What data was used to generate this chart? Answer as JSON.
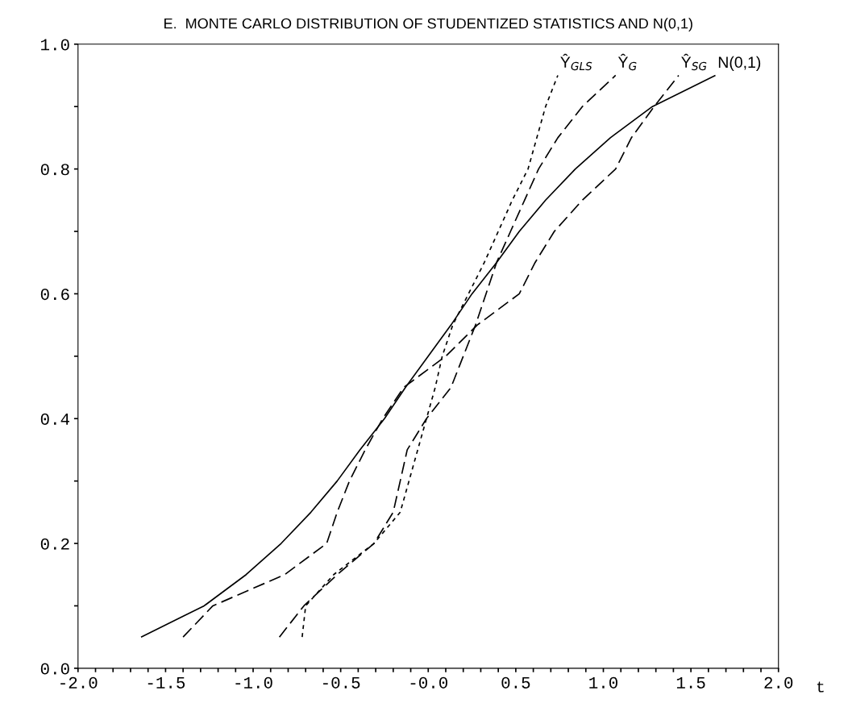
{
  "chart_data": {
    "type": "line",
    "title": "E.  MONTE CARLO DISTRIBUTION OF STUDENTIZED STATISTICS AND N(0,1)",
    "xlabel": "t",
    "xlim": [
      -2.0,
      2.0
    ],
    "ylim": [
      0.0,
      1.0
    ],
    "xticks": [
      {
        "value": -2.0,
        "label": "-2.0"
      },
      {
        "value": -1.9,
        "label": null
      },
      {
        "value": -1.8,
        "label": null
      },
      {
        "value": -1.7,
        "label": null
      },
      {
        "value": -1.6,
        "label": null
      },
      {
        "value": -1.5,
        "label": "-1.5"
      },
      {
        "value": -1.4,
        "label": null
      },
      {
        "value": -1.3,
        "label": null
      },
      {
        "value": -1.2,
        "label": null
      },
      {
        "value": -1.1,
        "label": null
      },
      {
        "value": -1.0,
        "label": "-1.0"
      },
      {
        "value": -0.9,
        "label": null
      },
      {
        "value": -0.8,
        "label": null
      },
      {
        "value": -0.7,
        "label": null
      },
      {
        "value": -0.6,
        "label": null
      },
      {
        "value": -0.5,
        "label": "-0.5"
      },
      {
        "value": -0.4,
        "label": null
      },
      {
        "value": -0.3,
        "label": null
      },
      {
        "value": -0.2,
        "label": null
      },
      {
        "value": -0.1,
        "label": null
      },
      {
        "value": 0.0,
        "label": "-0.0"
      },
      {
        "value": 0.1,
        "label": null
      },
      {
        "value": 0.2,
        "label": null
      },
      {
        "value": 0.3,
        "label": null
      },
      {
        "value": 0.4,
        "label": null
      },
      {
        "value": 0.5,
        "label": "0.5"
      },
      {
        "value": 0.6,
        "label": null
      },
      {
        "value": 0.7,
        "label": null
      },
      {
        "value": 0.8,
        "label": null
      },
      {
        "value": 0.9,
        "label": null
      },
      {
        "value": 1.0,
        "label": "1.0"
      },
      {
        "value": 1.1,
        "label": null
      },
      {
        "value": 1.2,
        "label": null
      },
      {
        "value": 1.3,
        "label": null
      },
      {
        "value": 1.4,
        "label": null
      },
      {
        "value": 1.5,
        "label": "1.5"
      },
      {
        "value": 1.6,
        "label": null
      },
      {
        "value": 1.7,
        "label": null
      },
      {
        "value": 1.8,
        "label": null
      },
      {
        "value": 1.9,
        "label": null
      },
      {
        "value": 2.0,
        "label": "2.0"
      }
    ],
    "yticks": [
      {
        "value": 0.0,
        "label": "0.0"
      },
      {
        "value": 0.1,
        "label": null
      },
      {
        "value": 0.2,
        "label": "0.2"
      },
      {
        "value": 0.3,
        "label": null
      },
      {
        "value": 0.4,
        "label": "0.4"
      },
      {
        "value": 0.5,
        "label": null
      },
      {
        "value": 0.6,
        "label": "0.6"
      },
      {
        "value": 0.7,
        "label": null
      },
      {
        "value": 0.8,
        "label": "0.8"
      },
      {
        "value": 0.9,
        "label": null
      },
      {
        "value": 1.0,
        "label": "1.0"
      }
    ],
    "grid": false,
    "legend": false,
    "series": [
      {
        "name": "Ŷ$_{GLS}$",
        "color": "#000000",
        "line_style": "dotted",
        "x": [
          -0.72,
          -0.7,
          -0.54,
          -0.31,
          -0.16,
          -0.11,
          -0.06,
          -0.01,
          0.04,
          0.08,
          0.14,
          0.23,
          0.32,
          0.4,
          0.48,
          0.57,
          0.62,
          0.67,
          0.74
        ],
        "values": [
          0.05,
          0.1,
          0.15,
          0.2,
          0.25,
          0.3,
          0.35,
          0.4,
          0.45,
          0.5,
          0.55,
          0.6,
          0.65,
          0.7,
          0.75,
          0.8,
          0.85,
          0.9,
          0.95
        ]
      },
      {
        "name": "Ŷ$_{G}$",
        "color": "#000000",
        "line_style": "dashed",
        "x": [
          -0.85,
          -0.71,
          -0.52,
          -0.31,
          -0.2,
          -0.16,
          -0.12,
          -0.01,
          0.13,
          0.2,
          0.27,
          0.33,
          0.39,
          0.47,
          0.55,
          0.63,
          0.74,
          0.88,
          1.07
        ],
        "values": [
          0.05,
          0.1,
          0.15,
          0.2,
          0.25,
          0.3,
          0.35,
          0.4,
          0.45,
          0.5,
          0.55,
          0.6,
          0.65,
          0.7,
          0.75,
          0.8,
          0.85,
          0.9,
          0.95
        ]
      },
      {
        "name": "Ŷ$_{SG}$",
        "color": "#000000",
        "line_style": "dashed",
        "x": [
          -1.4,
          -1.23,
          -0.82,
          -0.58,
          -0.52,
          -0.45,
          -0.36,
          -0.26,
          -0.14,
          0.1,
          0.28,
          0.52,
          0.61,
          0.72,
          0.88,
          1.07,
          1.16,
          1.29,
          1.43
        ],
        "values": [
          0.05,
          0.1,
          0.15,
          0.2,
          0.25,
          0.3,
          0.35,
          0.4,
          0.45,
          0.5,
          0.55,
          0.6,
          0.65,
          0.7,
          0.75,
          0.8,
          0.85,
          0.9,
          0.95
        ]
      },
      {
        "name": "N(0,1)",
        "color": "#000000",
        "line_style": "solid",
        "x": [
          -1.64,
          -1.28,
          -1.04,
          -0.84,
          -0.67,
          -0.52,
          -0.39,
          -0.25,
          -0.13,
          0.0,
          0.13,
          0.25,
          0.39,
          0.52,
          0.67,
          0.84,
          1.04,
          1.28,
          1.64
        ],
        "values": [
          0.05,
          0.1,
          0.15,
          0.2,
          0.25,
          0.3,
          0.35,
          0.4,
          0.45,
          0.5,
          0.55,
          0.6,
          0.65,
          0.7,
          0.75,
          0.8,
          0.85,
          0.9,
          0.95
        ]
      }
    ]
  }
}
